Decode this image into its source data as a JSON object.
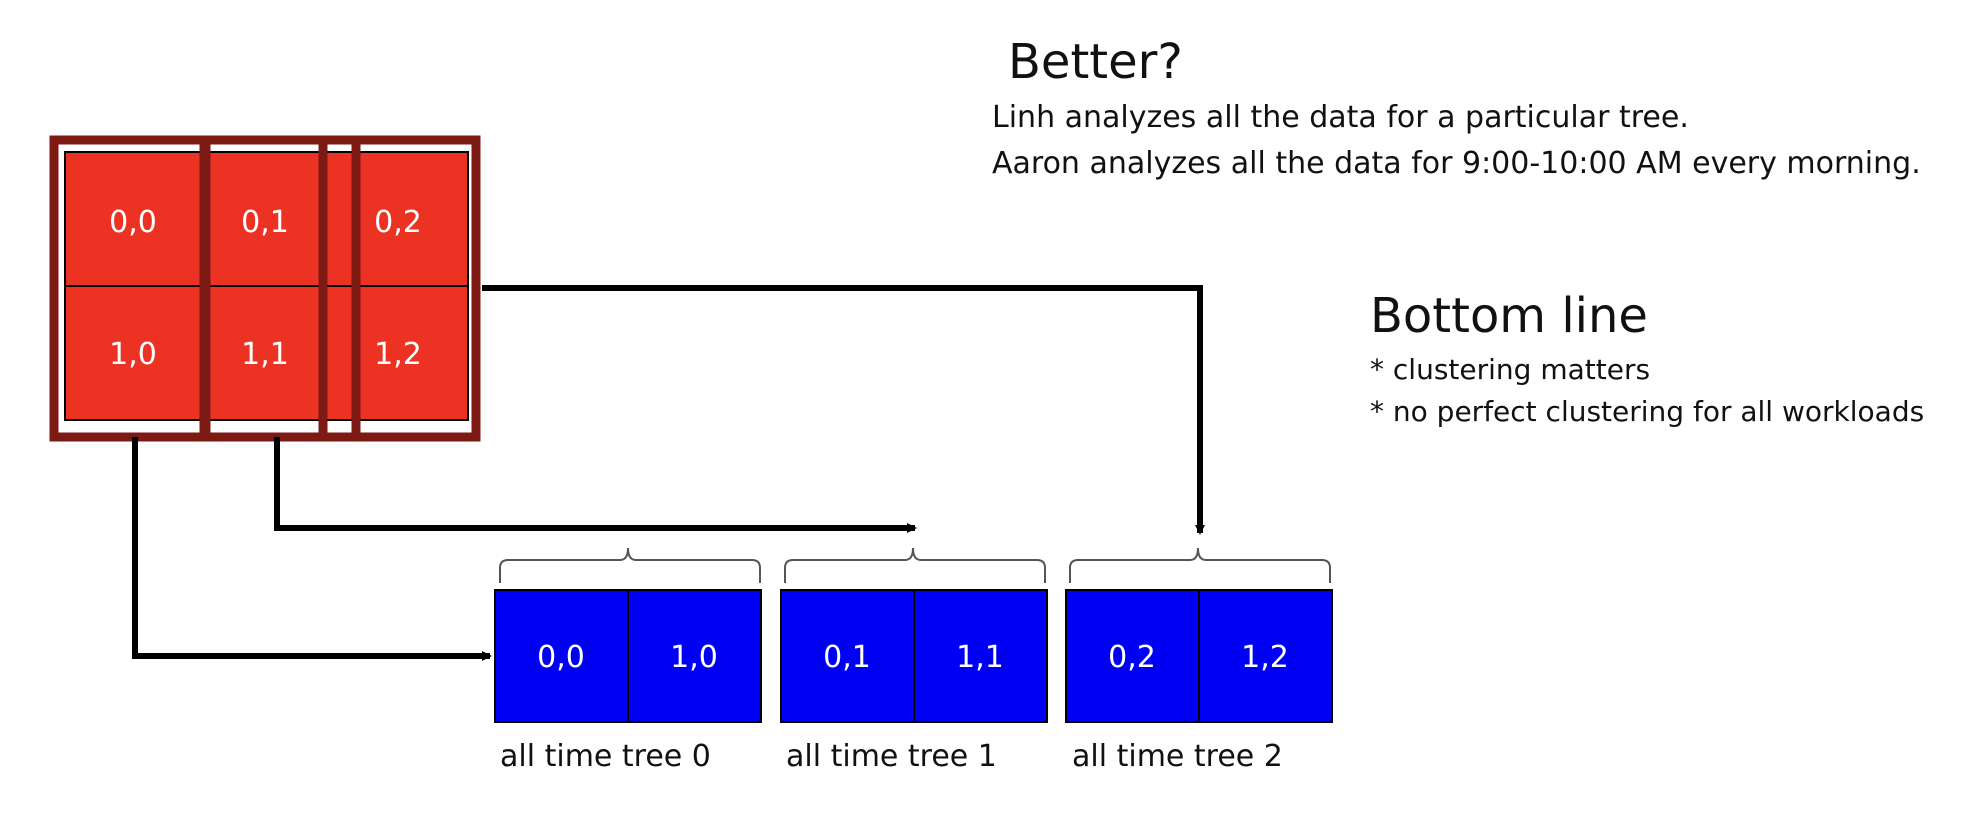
{
  "better": {
    "title": "Better?",
    "lines": [
      "Linh analyzes all the data for a particular tree.",
      "Aaron analyzes all the data for 9:00-10:00 AM every morning."
    ]
  },
  "bottom_line": {
    "title": "Bottom line",
    "bullets": [
      "* clustering matters",
      "* no perfect clustering for all workloads"
    ]
  },
  "source_grid": {
    "rows": [
      [
        "0,0",
        "0,1",
        "0,2"
      ],
      [
        "1,0",
        "1,1",
        "1,2"
      ]
    ]
  },
  "blocks": [
    {
      "cells": [
        "0,0",
        "1,0"
      ],
      "caption": "all time tree 0"
    },
    {
      "cells": [
        "0,1",
        "1,1"
      ],
      "caption": "all time tree 1"
    },
    {
      "cells": [
        "0,2",
        "1,2"
      ],
      "caption": "all time tree 2"
    }
  ],
  "colors": {
    "source_fill": "#ec3323",
    "column_outline": "#7d1a14",
    "block_fill": "#0000f5",
    "arrow": "#000000"
  }
}
